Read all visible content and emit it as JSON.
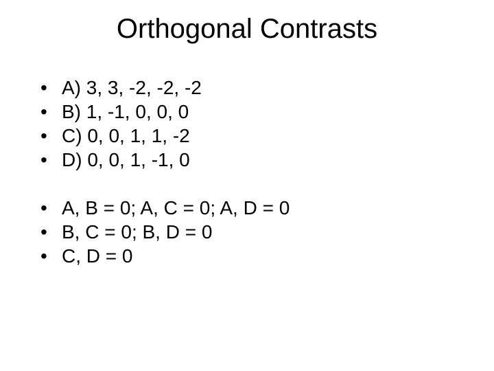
{
  "title": "Orthogonal Contrasts",
  "group1": [
    "A) 3, 3, -2, -2, -2",
    "B) 1, -1, 0, 0, 0",
    "C) 0, 0, 1, 1, -2",
    "D) 0, 0, 1, -1, 0"
  ],
  "group2": [
    "A, B = 0; A, C = 0; A, D = 0",
    "B, C = 0; B, D = 0",
    "C, D = 0"
  ]
}
